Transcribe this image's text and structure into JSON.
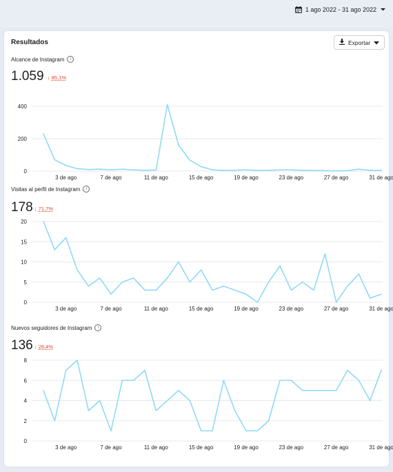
{
  "header": {
    "date_range": "1 ago 2022 - 31 ago 2022"
  },
  "results": {
    "title": "Resultados",
    "export_label": "Exportar"
  },
  "metrics": [
    {
      "label": "Alcance de Instagram",
      "value": "1.059",
      "change": "85,1%"
    },
    {
      "label": "Visitas al perfil de Instagram",
      "value": "178",
      "change": "71,7%"
    },
    {
      "label": "Nuevos seguidores de Instagram",
      "value": "136",
      "change": "28,4%"
    }
  ],
  "colors": {
    "line": "#8fd9f6",
    "decrease": "#e0452c",
    "grid": "#e6e8eb"
  },
  "chart_data": [
    {
      "type": "line",
      "x": [
        1,
        2,
        3,
        4,
        5,
        6,
        7,
        8,
        9,
        10,
        11,
        12,
        13,
        14,
        15,
        16,
        17,
        18,
        19,
        20,
        21,
        22,
        23,
        24,
        25,
        26,
        27,
        28,
        29,
        30,
        31
      ],
      "x_tick_values": [
        3,
        7,
        11,
        15,
        19,
        23,
        27,
        31
      ],
      "x_tick_labels": [
        "3 de ago",
        "7 de ago",
        "11 de ago",
        "15 de ago",
        "19 de ago",
        "23 de ago",
        "27 de ago",
        "31 de ago"
      ],
      "y_ticks": [
        0,
        200,
        400
      ],
      "ylim": [
        0,
        400
      ],
      "series": [
        {
          "values": [
            230,
            70,
            35,
            15,
            10,
            12,
            8,
            12,
            8,
            5,
            7,
            410,
            160,
            68,
            28,
            8,
            4,
            5,
            8,
            4,
            5,
            8,
            8,
            5,
            4,
            3,
            2,
            3,
            12,
            5,
            5
          ]
        }
      ],
      "grid": true
    },
    {
      "type": "line",
      "x": [
        1,
        2,
        3,
        4,
        5,
        6,
        7,
        8,
        9,
        10,
        11,
        12,
        13,
        14,
        15,
        16,
        17,
        18,
        19,
        20,
        21,
        22,
        23,
        24,
        25,
        26,
        27,
        28,
        29,
        30,
        31
      ],
      "x_tick_values": [
        3,
        7,
        11,
        15,
        19,
        23,
        27,
        31
      ],
      "x_tick_labels": [
        "3 de ago",
        "7 de ago",
        "11 de ago",
        "15 de ago",
        "19 de ago",
        "23 de ago",
        "27 de ago",
        "31 de ago"
      ],
      "y_ticks": [
        0,
        5,
        10,
        15,
        20
      ],
      "ylim": [
        0,
        20
      ],
      "series": [
        {
          "values": [
            20,
            13,
            16,
            8,
            4,
            6,
            2,
            5,
            6,
            3,
            3,
            6,
            10,
            5,
            8,
            3,
            4,
            3,
            2,
            0,
            5,
            9,
            3,
            5,
            3,
            12,
            0,
            4,
            7,
            1,
            2
          ]
        }
      ],
      "grid": true
    },
    {
      "type": "line",
      "x": [
        1,
        2,
        3,
        4,
        5,
        6,
        7,
        8,
        9,
        10,
        11,
        12,
        13,
        14,
        15,
        16,
        17,
        18,
        19,
        20,
        21,
        22,
        23,
        24,
        25,
        26,
        27,
        28,
        29,
        30,
        31
      ],
      "x_tick_values": [
        3,
        7,
        11,
        15,
        19,
        23,
        27,
        31
      ],
      "x_tick_labels": [
        "3 de ago",
        "7 de ago",
        "11 de ago",
        "15 de ago",
        "19 de ago",
        "23 de ago",
        "27 de ago",
        "31 de ago"
      ],
      "y_ticks": [
        0,
        2,
        4,
        6,
        8
      ],
      "ylim": [
        0,
        8
      ],
      "series": [
        {
          "values": [
            5,
            2,
            7,
            8,
            3,
            4,
            1,
            6,
            6,
            7,
            3,
            4,
            5,
            4,
            1,
            1,
            6,
            3,
            1,
            1,
            2,
            6,
            6,
            5,
            5,
            5,
            5,
            7,
            6,
            4,
            7
          ]
        }
      ],
      "grid": true
    }
  ]
}
